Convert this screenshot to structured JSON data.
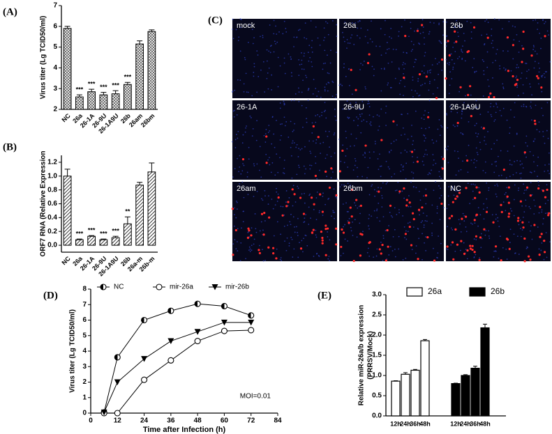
{
  "chart_data": [
    {
      "type": "bar",
      "panel": "(A)",
      "y_label": "Virus titer (Lg TCID50/ml)",
      "categories": [
        "NC",
        "26a",
        "26-1A",
        "26-9U",
        "26-1A9U",
        "26b",
        "26am",
        "26bm"
      ],
      "values": [
        5.9,
        2.6,
        2.85,
        2.7,
        2.75,
        3.2,
        5.15,
        5.75
      ],
      "errors": [
        0.1,
        0.1,
        0.12,
        0.12,
        0.15,
        0.1,
        0.15,
        0.08
      ],
      "annotations": [
        null,
        "***",
        "***",
        "***",
        "***",
        "***",
        null,
        null
      ],
      "ylim": [
        2,
        7
      ],
      "yticks": [
        2,
        3,
        4,
        5,
        6,
        7
      ],
      "pattern": "cross"
    },
    {
      "type": "bar",
      "panel": "(B)",
      "y_label": "ORF7 RNA (Relative Expression",
      "categories": [
        "NC",
        "26a",
        "26-1A",
        "26-9U",
        "26-1A9U",
        "26b",
        "26a-m",
        "26b-m"
      ],
      "values": [
        1.0,
        0.08,
        0.13,
        0.08,
        0.11,
        0.31,
        0.87,
        1.06
      ],
      "errors": [
        0.1,
        0.01,
        0.01,
        0.01,
        0.02,
        0.1,
        0.04,
        0.13
      ],
      "annotations": [
        null,
        "***",
        "***",
        "***",
        "***",
        "**",
        null,
        null
      ],
      "ylim": [
        -0.1,
        1.3
      ],
      "yticks": [
        {
          "value": 0,
          "label": "0.0"
        },
        0.2,
        0.4,
        0.6,
        0.8,
        {
          "value": 1,
          "label": "1.0"
        },
        1.2
      ],
      "pattern": "diag"
    },
    {
      "type": "line",
      "panel": "(D)",
      "x_label": "Time after Infection (h)",
      "y_label": "Virus titer (Lg TCID50/ml)",
      "x": [
        6,
        12,
        24,
        36,
        48,
        60,
        72
      ],
      "series": [
        {
          "name": "NC",
          "marker": "half-circle",
          "values": [
            0.05,
            3.6,
            6.0,
            6.6,
            7.05,
            6.9,
            6.3
          ]
        },
        {
          "name": "mir-26a",
          "marker": "circle",
          "values": [
            0,
            0,
            2.15,
            3.4,
            4.65,
            5.3,
            5.35
          ]
        },
        {
          "name": "mir-26b",
          "marker": "triangle-down",
          "values": [
            0.05,
            2.0,
            3.5,
            4.65,
            5.25,
            5.85,
            5.85
          ]
        }
      ],
      "xlim": [
        0,
        84
      ],
      "xticks": [
        0,
        12,
        24,
        36,
        48,
        60,
        72,
        84
      ],
      "ylim": [
        0,
        8
      ],
      "yticks": [
        0,
        1,
        2,
        3,
        4,
        5,
        6,
        7,
        8
      ],
      "annotation": "MOI=0.01"
    },
    {
      "type": "bar",
      "panel": "(E)",
      "y_label": [
        "Relative miR-26a/b expression",
        "(PRRSV/Mock)"
      ],
      "categories": [
        "12h",
        "24h",
        "36h",
        "48h"
      ],
      "series": [
        {
          "name": "26a",
          "color": "#ffffff",
          "values": [
            0.86,
            1.03,
            1.13,
            1.86
          ],
          "errors": [
            0.01,
            0.04,
            0.02,
            0.03
          ]
        },
        {
          "name": "26b",
          "color": "#000000",
          "values": [
            0.8,
            1.0,
            1.18,
            2.18
          ],
          "errors": [
            0.01,
            0.02,
            0.05,
            0.09
          ]
        }
      ],
      "ylim": [
        0,
        3.0
      ],
      "yticks": [
        {
          "value": 0,
          "label": "0.0"
        },
        0.5,
        {
          "value": 1,
          "label": "1.0"
        },
        1.5,
        {
          "value": 2,
          "label": "2.0"
        },
        2.5,
        {
          "value": 3,
          "label": "3.0"
        }
      ]
    }
  ],
  "microscopy": {
    "panel": "(C)",
    "labels": [
      "mock",
      "26a",
      "26b",
      "26-1A",
      "26-9U",
      "26-1A9U",
      "26am",
      "26bm",
      "NC"
    ]
  }
}
